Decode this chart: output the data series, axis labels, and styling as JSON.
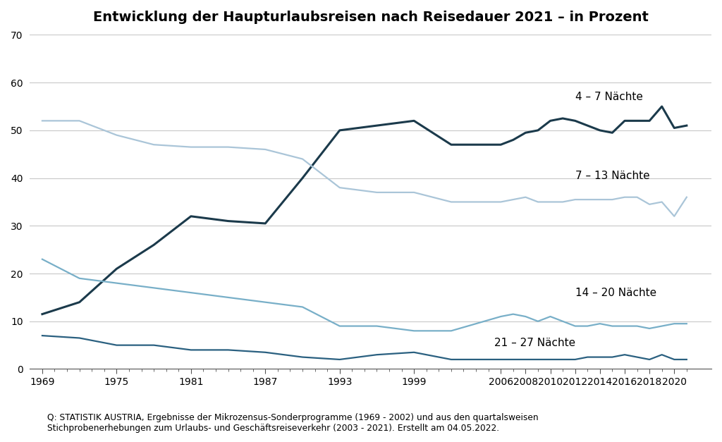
{
  "title": "Entwicklung der Haupturlaubsreisen nach Reisedauer 2021 – in Prozent",
  "title_fontsize": 14,
  "footnote": "Q: STATISTIK AUSTRIA, Ergebnisse der Mikrozensus-Sonderprogramme (1969 - 2002) und aus den quartalsweisen\nStichprobenerhebungen zum Urlaubs- und Geschäftsreiseverkehr (2003 - 2021). Erstellt am 04.05.2022.",
  "ylim": [
    0,
    70
  ],
  "yticks": [
    0,
    10,
    20,
    30,
    40,
    50,
    60,
    70
  ],
  "xtick_major_positions": [
    1969,
    1975,
    1981,
    1987,
    1993,
    1999,
    2006,
    2008,
    2010,
    2012,
    2014,
    2016,
    2018,
    2020
  ],
  "xtick_minor_positions": [
    1970,
    1971,
    1972,
    1973,
    1974,
    1976,
    1977,
    1978,
    1979,
    1980,
    1982,
    1983,
    1984,
    1985,
    1986,
    1988,
    1989,
    1990,
    1991,
    1992,
    1994,
    1995,
    1996,
    1997,
    1998,
    2000,
    2001,
    2002,
    2003,
    2004,
    2005,
    2007,
    2009,
    2011,
    2013,
    2015,
    2017,
    2019,
    2021
  ],
  "xlim": [
    1968,
    2023
  ],
  "series": [
    {
      "label": "4 – 7 Nächte",
      "color": "#1b3a4b",
      "linewidth": 2.2,
      "x": [
        1969,
        1972,
        1975,
        1978,
        1981,
        1984,
        1987,
        1990,
        1993,
        1996,
        1999,
        2002,
        2006,
        2007,
        2008,
        2009,
        2010,
        2011,
        2012,
        2013,
        2014,
        2015,
        2016,
        2017,
        2018,
        2019,
        2020,
        2021
      ],
      "y": [
        11.5,
        14,
        21,
        26,
        32,
        31,
        30.5,
        40,
        50,
        51,
        52,
        47,
        47,
        48,
        49.5,
        50,
        52,
        52.5,
        52,
        51,
        50,
        49.5,
        52,
        52,
        52,
        55,
        50.5,
        51
      ]
    },
    {
      "label": "7 – 13 Nächte",
      "color": "#aac5d8",
      "linewidth": 1.6,
      "x": [
        1969,
        1972,
        1975,
        1978,
        1981,
        1984,
        1987,
        1990,
        1993,
        1996,
        1999,
        2002,
        2006,
        2007,
        2008,
        2009,
        2010,
        2011,
        2012,
        2013,
        2014,
        2015,
        2016,
        2017,
        2018,
        2019,
        2020,
        2021
      ],
      "y": [
        52,
        52,
        49,
        47,
        46.5,
        46.5,
        46,
        44,
        38,
        37,
        37,
        35,
        35,
        35.5,
        36,
        35,
        35,
        35,
        35.5,
        35.5,
        35.5,
        35.5,
        36,
        36,
        34.5,
        35,
        32,
        36
      ]
    },
    {
      "label": "14 – 20 Nächte",
      "color": "#78afc8",
      "linewidth": 1.6,
      "x": [
        1969,
        1972,
        1975,
        1978,
        1981,
        1984,
        1987,
        1990,
        1993,
        1996,
        1999,
        2002,
        2006,
        2007,
        2008,
        2009,
        2010,
        2011,
        2012,
        2013,
        2014,
        2015,
        2016,
        2017,
        2018,
        2019,
        2020,
        2021
      ],
      "y": [
        23,
        19,
        18,
        17,
        16,
        15,
        14,
        13,
        9,
        9,
        8,
        8,
        11,
        11.5,
        11,
        10,
        11,
        10,
        9,
        9,
        9.5,
        9,
        9,
        9,
        8.5,
        9,
        9.5,
        9.5
      ]
    },
    {
      "label": "21 – 27 Nächte",
      "color": "#2a6080",
      "linewidth": 1.6,
      "x": [
        1969,
        1972,
        1975,
        1978,
        1981,
        1984,
        1987,
        1990,
        1993,
        1996,
        1999,
        2002,
        2006,
        2007,
        2008,
        2009,
        2010,
        2011,
        2012,
        2013,
        2014,
        2015,
        2016,
        2017,
        2018,
        2019,
        2020,
        2021
      ],
      "y": [
        7,
        6.5,
        5,
        5,
        4,
        4,
        3.5,
        2.5,
        2,
        3,
        3.5,
        2,
        2,
        2,
        2,
        2,
        2,
        2,
        2,
        2.5,
        2.5,
        2.5,
        3,
        2.5,
        2,
        3,
        2,
        2
      ]
    }
  ],
  "background_color": "#ffffff",
  "grid_color": "#c8c8c8",
  "annotation_fontsize": 11
}
